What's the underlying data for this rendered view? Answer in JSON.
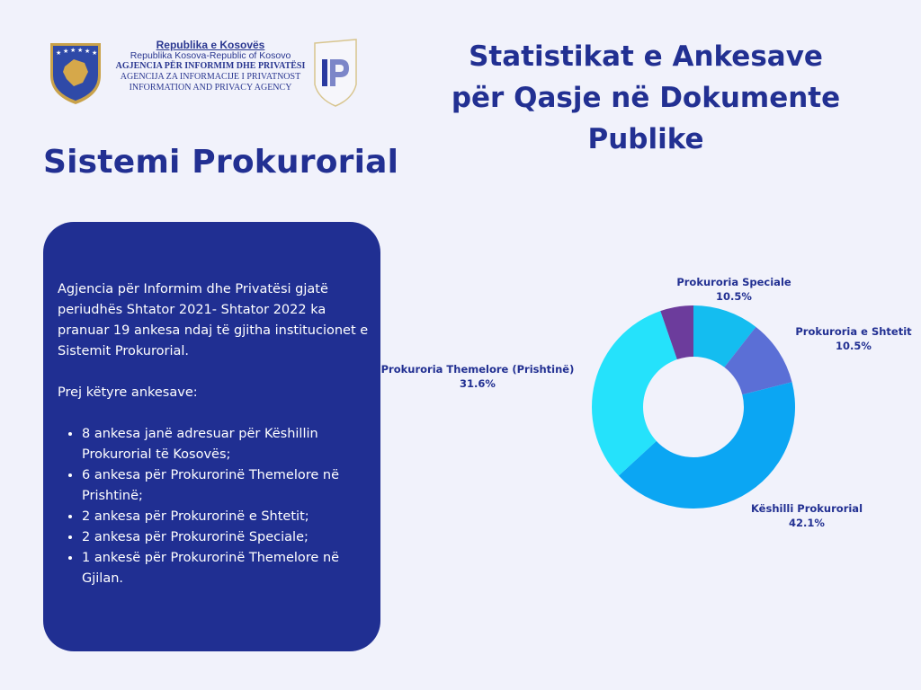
{
  "header": {
    "agency": {
      "line1": "Republika e Kosovës",
      "line2": "Republika Kosova-Republic of Kosovo",
      "line3": "AGJENCIA PËR INFORMIM DHE PRIVATËSI",
      "line4": "AGENCIJA ZA INFORMACIJE I PRIVATNOST",
      "line5": "INFORMATION AND PRIVACY AGENCY"
    },
    "ip_logo_text": "IP",
    "title_lines": [
      "Statistikat e Ankesave",
      "për Qasje në Dokumente",
      "Publike"
    ]
  },
  "section_title": "Sistemi Prokurorial",
  "card": {
    "intro": "Agjencia për Informim dhe Privatësi gjatë periudhës Shtator 2021- Shtator 2022 ka pranuar 19 ankesa ndaj të gjitha institucionet e Sistemit Prokurorial.",
    "subheading": "Prej këtyre ankesave:",
    "items": [
      "8 ankesa janë adresuar për Këshillin Prokurorial të Kosovës;",
      "6 ankesa për Prokurorinë Themelore në Prishtinë;",
      "2 ankesa për Prokurorinë e Shtetit;",
      "2 ankesa për Prokurorinë Speciale;",
      "1 ankesë për Prokurorinë Themelore në Gjilan."
    ]
  },
  "colors": {
    "primary": "#223092",
    "card_bg": "#202f92",
    "page_bg": "#f1f2fb"
  },
  "chart_data": {
    "type": "pie",
    "variant": "donut",
    "title": "",
    "total": 19,
    "categories": [
      "Prokuroria Speciale",
      "Prokuroria e Shtetit",
      "Këshilli Prokurorial",
      "Prokuroria Themelore (Prishtinë)",
      "Prokuroria Themelore (Gjilan)"
    ],
    "values": [
      2,
      2,
      8,
      6,
      1
    ],
    "percentages": [
      10.5,
      10.5,
      42.1,
      31.6,
      5.3
    ],
    "labels": [
      {
        "name": "Prokuroria Speciale",
        "pct": "10.5%",
        "shown": true
      },
      {
        "name": "Prokuroria e Shtetit",
        "pct": "10.5%",
        "shown": true
      },
      {
        "name": "Këshilli Prokurorial",
        "pct": "42.1%",
        "shown": true
      },
      {
        "name": "Prokuroria Themelore (Prishtinë)",
        "pct": "31.6%",
        "shown": true
      },
      {
        "name": "Prokuroria Themelore (Gjilan)",
        "pct": "5.3%",
        "shown": false
      }
    ],
    "colors": [
      "#14bdf0",
      "#5b6fd6",
      "#0ba6f3",
      "#25e2fb",
      "#6c3c9c"
    ],
    "legend": "none",
    "start_angle_deg": 0,
    "direction": "clockwise"
  }
}
